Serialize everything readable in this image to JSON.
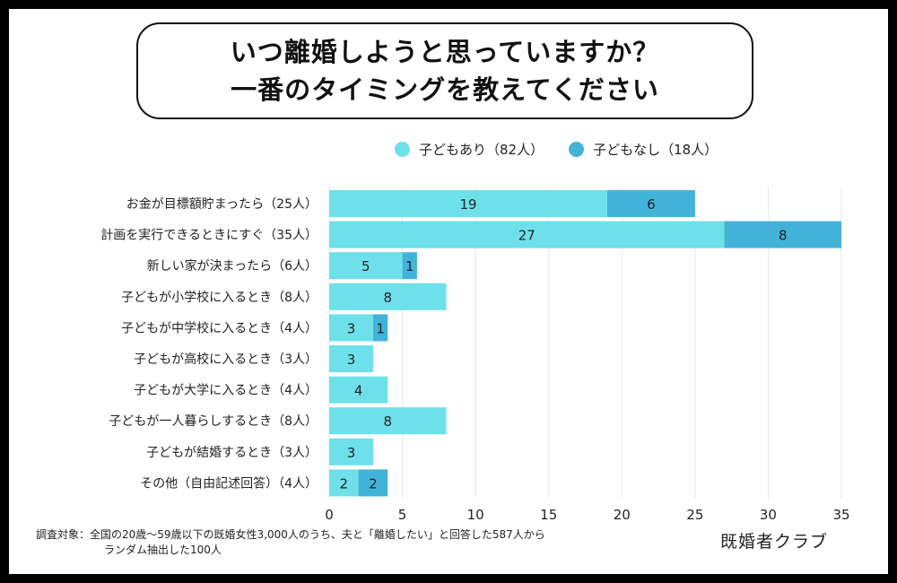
{
  "title": {
    "line1": "いつ離婚しようと思っていますか？",
    "line2": "一番のタイミングを教えてください"
  },
  "colors": {
    "with_children": "#6ee0ea",
    "without_children": "#41b3d8"
  },
  "chart_data": {
    "type": "bar",
    "orientation": "horizontal",
    "stacked": true,
    "categories": [
      "お金が目標額貯まったら（25人）",
      "計画を実行できるときにすぐ（35人）",
      "新しい家が決まったら（6人）",
      "子どもが小学校に入るとき（8人）",
      "子どもが中学校に入るとき（4人）",
      "子どもが高校に入るとき（3人）",
      "子どもが大学に入るとき（4人）",
      "子どもが一人暮らしするとき（8人）",
      "子どもが結婚するとき（3人）",
      "その他（自由記述回答）（4人）"
    ],
    "series": [
      {
        "name": "子どもあり（82人）",
        "values": [
          19,
          27,
          5,
          8,
          3,
          3,
          4,
          8,
          3,
          2
        ]
      },
      {
        "name": "子どもなし（18人）",
        "values": [
          6,
          8,
          1,
          0,
          1,
          0,
          0,
          0,
          0,
          2
        ]
      }
    ],
    "xlim": [
      0,
      35
    ],
    "xticks": [
      0,
      5,
      10,
      15,
      20,
      25,
      30,
      35
    ],
    "legend_position": "top",
    "grid": true
  },
  "footnote": {
    "line1": "調査対象：全国の20歳〜59歳以下の既婚女性3,000人のうち、夫と「離婚したい」と回答した587人から",
    "line2": "ランダム抽出した100人"
  },
  "brand": "既婚者クラブ"
}
